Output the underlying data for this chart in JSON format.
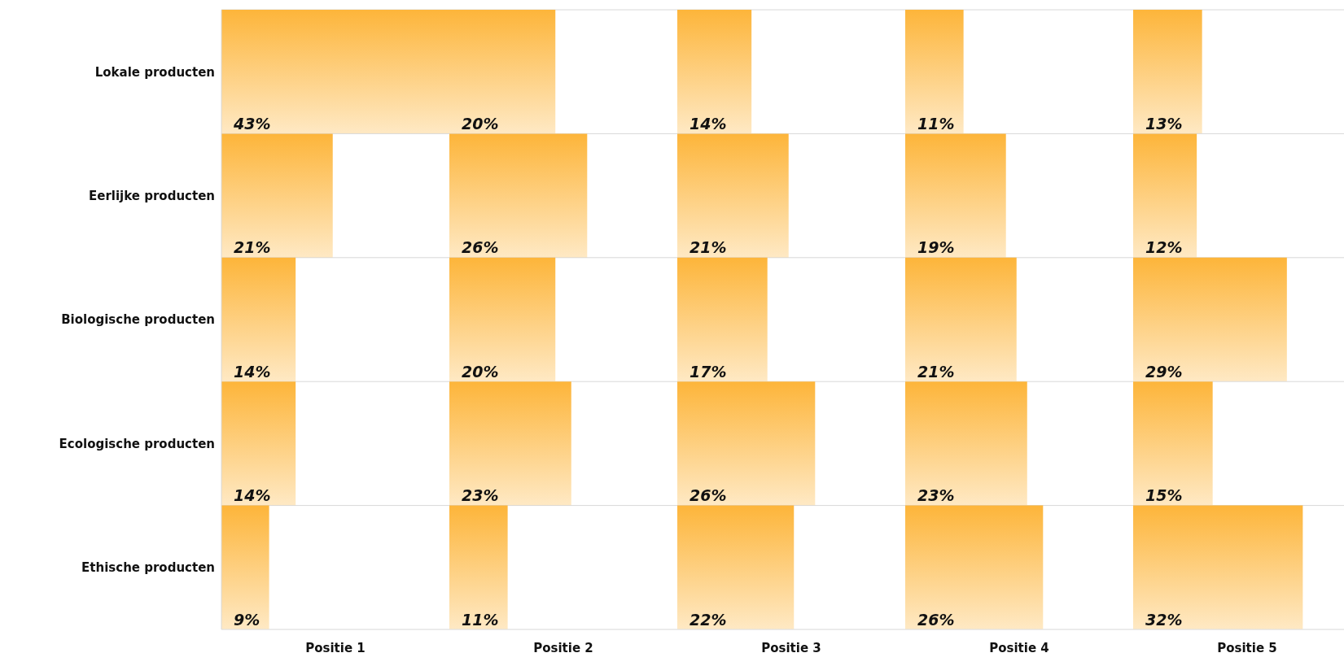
{
  "chart_data": [
    {
      "type": "bar",
      "orientation": "horizontal",
      "xlabel": "Positie 1",
      "categories": [
        "Lokale producten",
        "Eerlijke producten",
        "Biologische producten",
        "Ecologische producten",
        "Ethische producten"
      ],
      "values": [
        43,
        21,
        14,
        14,
        9
      ],
      "value_labels": [
        "43%",
        "21%",
        "14%",
        "14%",
        "9%"
      ],
      "color": "#fdb53a",
      "grid": "y",
      "tick_labels": "y"
    },
    {
      "type": "bar",
      "orientation": "horizontal",
      "xlabel": "Positie 2",
      "categories": [
        null,
        null,
        null,
        null,
        null
      ],
      "values": [
        20,
        26,
        20,
        23,
        11
      ],
      "value_labels": [
        "20%",
        "26%",
        "20%",
        "23%",
        "11%"
      ],
      "color": "#fdb53a",
      "grid": "y",
      "tick_labels": false
    },
    {
      "type": "bar",
      "orientation": "horizontal",
      "xlabel": "Positie 3",
      "categories": [
        null,
        null,
        null,
        null,
        null
      ],
      "values": [
        14,
        21,
        17,
        26,
        22
      ],
      "value_labels": [
        "14%",
        "21%",
        "17%",
        "26%",
        "22%"
      ],
      "color": "#fdb53a",
      "grid": "y",
      "tick_labels": false
    },
    {
      "type": "bar",
      "orientation": "horizontal",
      "xlabel": "Positie 4",
      "categories": [
        null,
        null,
        null,
        null,
        null
      ],
      "values": [
        11,
        19,
        21,
        23,
        26
      ],
      "value_labels": [
        "11%",
        "19%",
        "21%",
        "23%",
        "26%"
      ],
      "color": "#fdb53a",
      "grid": "y",
      "tick_labels": false
    },
    {
      "type": "bar",
      "orientation": "horizontal",
      "xlabel": "Positie 5",
      "categories": [
        null,
        null,
        null,
        null,
        null
      ],
      "values": [
        13,
        12,
        29,
        15,
        32
      ],
      "value_labels": [
        "13%",
        "12%",
        "29%",
        "15%",
        "32%"
      ],
      "color": "#fdb53a",
      "grid": "y",
      "tick_labels": false
    }
  ]
}
